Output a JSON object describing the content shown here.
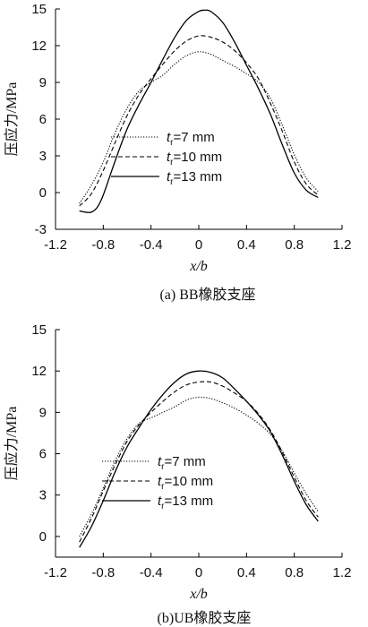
{
  "chart_data": [
    {
      "type": "line",
      "caption": "(a) BB橡胶支座",
      "xlabel": "x/b",
      "ylabel": "压应力/MPa",
      "xlim": [
        -1.2,
        1.2
      ],
      "ylim": [
        -3,
        15
      ],
      "xticks": [
        -1.2,
        -0.8,
        -0.4,
        0,
        0.4,
        0.8,
        1.2
      ],
      "yticks": [
        -3,
        0,
        3,
        6,
        9,
        12,
        15
      ],
      "xtick_labels": [
        "-1.2",
        "-0.8",
        "-0.4",
        "0",
        "0.4",
        "0.8",
        "1.2"
      ],
      "ytick_labels": [
        "-3",
        "0",
        "3",
        "6",
        "9",
        "12",
        "15"
      ],
      "legend_position": "center",
      "series": [
        {
          "name": "tr=7 mm",
          "legend_italic": "t",
          "legend_sub": "r",
          "legend_rest": "=7 mm",
          "style": "dotted",
          "x": [
            -1.0,
            -0.9,
            -0.8,
            -0.7,
            -0.6,
            -0.5,
            -0.4,
            -0.3,
            -0.2,
            -0.1,
            0.0,
            0.1,
            0.2,
            0.3,
            0.4,
            0.5,
            0.6,
            0.7,
            0.8,
            0.9,
            1.0
          ],
          "y": [
            -0.9,
            0.6,
            2.5,
            4.9,
            6.9,
            8.3,
            9.0,
            9.6,
            10.5,
            11.2,
            11.5,
            11.3,
            10.8,
            10.3,
            9.7,
            9.0,
            7.7,
            5.5,
            3.1,
            1.2,
            0.1
          ]
        },
        {
          "name": "tr=10 mm",
          "legend_italic": "t",
          "legend_sub": "r",
          "legend_rest": "=10 mm",
          "style": "dashed",
          "x": [
            -1.0,
            -0.9,
            -0.8,
            -0.7,
            -0.6,
            -0.5,
            -0.4,
            -0.3,
            -0.2,
            -0.1,
            0.0,
            0.1,
            0.2,
            0.3,
            0.4,
            0.5,
            0.6,
            0.7,
            0.8,
            0.9,
            1.0
          ],
          "y": [
            -1.1,
            -0.1,
            1.8,
            4.1,
            6.3,
            8.0,
            9.3,
            10.5,
            11.6,
            12.4,
            12.8,
            12.7,
            12.3,
            11.6,
            10.6,
            9.3,
            7.3,
            5.0,
            2.5,
            0.7,
            -0.2
          ]
        },
        {
          "name": "tr=13 mm",
          "legend_italic": "t",
          "legend_sub": "r",
          "legend_rest": "=13 mm",
          "style": "solid",
          "x": [
            -1.0,
            -0.95,
            -0.9,
            -0.85,
            -0.8,
            -0.7,
            -0.6,
            -0.5,
            -0.4,
            -0.3,
            -0.2,
            -0.1,
            0.0,
            0.05,
            0.1,
            0.2,
            0.3,
            0.4,
            0.5,
            0.6,
            0.7,
            0.8,
            0.9,
            1.0
          ],
          "y": [
            -1.5,
            -1.6,
            -1.6,
            -1.2,
            -0.2,
            2.6,
            5.2,
            7.2,
            9.0,
            10.9,
            12.7,
            14.1,
            14.8,
            14.9,
            14.8,
            13.9,
            12.3,
            10.4,
            8.5,
            6.4,
            3.9,
            1.6,
            0.2,
            -0.4
          ]
        }
      ]
    },
    {
      "type": "line",
      "caption": "(b)UB橡胶支座",
      "xlabel": "x/b",
      "ylabel": "压应力/MPa",
      "xlim": [
        -1.2,
        1.2
      ],
      "ylim": [
        -1.5,
        15
      ],
      "xticks": [
        -1.2,
        -0.8,
        -0.4,
        0,
        0.4,
        0.8,
        1.2
      ],
      "yticks": [
        0,
        3,
        6,
        9,
        12,
        15
      ],
      "xtick_labels": [
        "-1.2",
        "-0.8",
        "-0.4",
        "0",
        "0.4",
        "0.8",
        "1.2"
      ],
      "ytick_labels": [
        "0",
        "3",
        "6",
        "9",
        "12",
        "15"
      ],
      "legend_position": "lower-center",
      "series": [
        {
          "name": "tr=7 mm",
          "legend_italic": "t",
          "legend_sub": "r",
          "legend_rest": "=7 mm",
          "style": "dotted",
          "x": [
            -1.0,
            -0.9,
            -0.8,
            -0.7,
            -0.6,
            -0.5,
            -0.4,
            -0.3,
            -0.2,
            -0.1,
            0.0,
            0.1,
            0.2,
            0.3,
            0.4,
            0.5,
            0.6,
            0.7,
            0.8,
            0.9,
            1.0
          ],
          "y": [
            0.0,
            1.6,
            3.5,
            5.5,
            7.1,
            8.2,
            8.6,
            9.0,
            9.4,
            9.9,
            10.1,
            10.0,
            9.7,
            9.3,
            8.8,
            8.2,
            7.4,
            6.2,
            4.6,
            3.1,
            1.8
          ]
        },
        {
          "name": "tr=10 mm",
          "legend_italic": "t",
          "legend_sub": "r",
          "legend_rest": "=10 mm",
          "style": "dashed",
          "x": [
            -1.0,
            -0.9,
            -0.8,
            -0.7,
            -0.6,
            -0.5,
            -0.4,
            -0.3,
            -0.2,
            -0.1,
            0.0,
            0.1,
            0.2,
            0.3,
            0.4,
            0.5,
            0.6,
            0.7,
            0.8,
            0.9,
            1.0
          ],
          "y": [
            -0.4,
            1.3,
            3.3,
            5.2,
            6.9,
            8.1,
            9.0,
            9.8,
            10.5,
            11.0,
            11.2,
            11.2,
            10.9,
            10.4,
            9.8,
            8.9,
            7.7,
            6.1,
            4.3,
            2.6,
            1.4
          ]
        },
        {
          "name": "tr=13 mm",
          "legend_italic": "t",
          "legend_sub": "r",
          "legend_rest": "=13 mm",
          "style": "solid",
          "x": [
            -1.0,
            -0.9,
            -0.8,
            -0.7,
            -0.6,
            -0.5,
            -0.4,
            -0.3,
            -0.2,
            -0.1,
            0.0,
            0.1,
            0.2,
            0.3,
            0.4,
            0.5,
            0.6,
            0.7,
            0.8,
            0.9,
            1.0
          ],
          "y": [
            -0.8,
            0.7,
            2.6,
            4.7,
            6.5,
            7.9,
            9.2,
            10.3,
            11.2,
            11.8,
            12.0,
            11.9,
            11.5,
            10.7,
            9.8,
            8.8,
            7.6,
            5.9,
            4.0,
            2.3,
            1.1
          ]
        }
      ]
    }
  ]
}
